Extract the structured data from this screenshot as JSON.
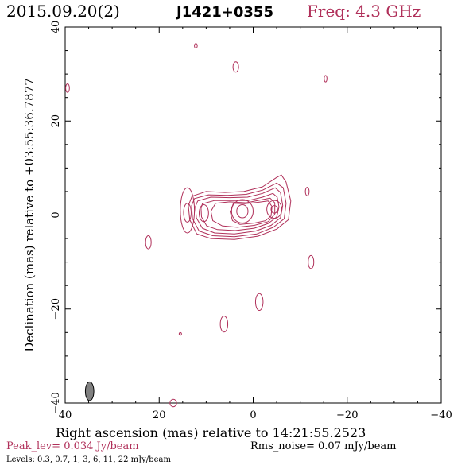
{
  "header": {
    "date": "2015.09.20(2)",
    "source": "J1421+0355",
    "freq": "Freq: 4.3 GHz"
  },
  "colors": {
    "contour": "#b0305a",
    "beam": "#808080",
    "axis": "#000000"
  },
  "chart_data": {
    "type": "contour",
    "title": "J1421+0355",
    "xlabel": "Right ascension (mas) relative to 14:21:55.2523",
    "ylabel": "Declination (mas) relative to +03:55:36.7877",
    "xlim": [
      40,
      -40
    ],
    "ylim": [
      -40,
      40
    ],
    "xticks": [
      40,
      20,
      0,
      -20,
      -40
    ],
    "yticks": [
      40,
      20,
      0,
      -20,
      -40
    ],
    "tick_labels": {
      "x": [
        "40",
        "20",
        "0",
        "−20",
        "−40"
      ],
      "y": [
        "40",
        "20",
        "0",
        "−20",
        "−40"
      ]
    },
    "levels_mjy_per_beam": [
      0.3,
      0.7,
      1,
      3,
      6,
      11,
      22
    ],
    "peak_jy_per_beam": 0.034,
    "rms_noise_mjy_per_beam": 0.07,
    "beam": {
      "ra": 34.8,
      "dec": -37.5,
      "major_mas": 4.0,
      "minor_mas": 1.8,
      "pa_deg": 0
    },
    "core_components": [
      {
        "ra": 2.3,
        "dec": 0.8,
        "label": "peak"
      },
      {
        "ra": -4.5,
        "dec": 1.2,
        "label": "secondary"
      },
      {
        "ra": 14,
        "dec": 0.5,
        "label": "knot"
      }
    ],
    "isolated_blobs": [
      {
        "ra": 12.2,
        "dec": 36,
        "rx": 0.3,
        "ry": 0.5
      },
      {
        "ra": 3.7,
        "dec": 31.5,
        "rx": 0.6,
        "ry": 1.1
      },
      {
        "ra": -15.4,
        "dec": 29,
        "rx": 0.3,
        "ry": 0.7
      },
      {
        "ra": 39.5,
        "dec": 27,
        "rx": 0.4,
        "ry": 0.9
      },
      {
        "ra": -11.5,
        "dec": 5,
        "rx": 0.4,
        "ry": 0.9
      },
      {
        "ra": 22.3,
        "dec": -5.8,
        "rx": 0.6,
        "ry": 1.4
      },
      {
        "ra": -12.3,
        "dec": -10,
        "rx": 0.6,
        "ry": 1.4
      },
      {
        "ra": -1.3,
        "dec": -18.5,
        "rx": 0.8,
        "ry": 1.8
      },
      {
        "ra": 6.2,
        "dec": -23.2,
        "rx": 0.8,
        "ry": 1.7
      },
      {
        "ra": 15.5,
        "dec": -25.3,
        "rx": 0.2,
        "ry": 0.3
      },
      {
        "ra": 17,
        "dec": -40,
        "rx": 0.7,
        "ry": 0.8
      }
    ],
    "knot_contours": [
      {
        "ra": 14,
        "dec": 1,
        "rx": 1.5,
        "ry": 4.8
      },
      {
        "ra": 14,
        "dec": 0.5,
        "rx": 0.8,
        "ry": 2.0
      }
    ]
  },
  "footer": {
    "peak": "Peak_lev=  0.034 Jy/beam",
    "rms": "Rms_noise= 0.07 mJy/beam",
    "levels": "Levels: 0.3, 0.7,   1,   3,   6,  11,  22 mJy/beam"
  }
}
